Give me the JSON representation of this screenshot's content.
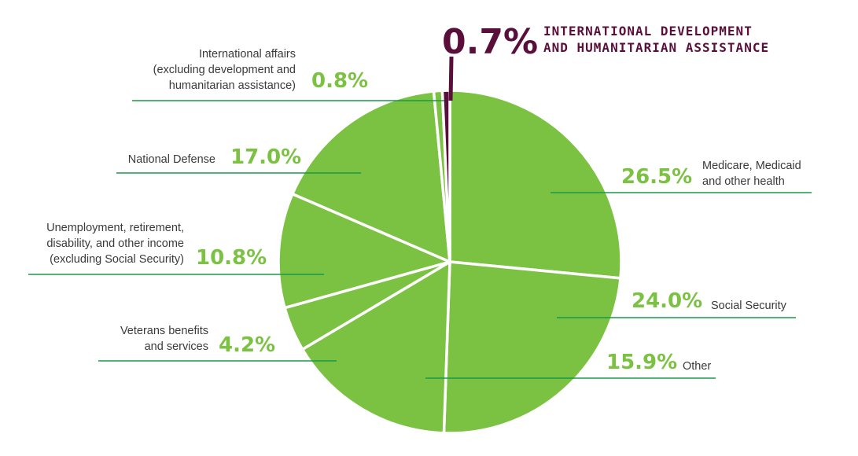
{
  "chart_data": {
    "type": "pie",
    "slices": [
      {
        "label": "Medicare, Medicaid and other health",
        "lines": [
          "Medicare, Medicaid",
          "and other health"
        ],
        "value": 26.5,
        "value_label": "26.5%"
      },
      {
        "label": "Social Security",
        "lines": [
          "Social Security"
        ],
        "value": 24.0,
        "value_label": "24.0%"
      },
      {
        "label": "Other",
        "lines": [
          "Other"
        ],
        "value": 15.9,
        "value_label": "15.9%"
      },
      {
        "label": "Veterans benefits and services",
        "lines": [
          "Veterans benefits",
          "and services"
        ],
        "value": 4.2,
        "value_label": "4.2%"
      },
      {
        "label": "Unemployment, retirement, disability, and other income (excluding Social Security)",
        "lines": [
          "Unemployment, retirement,",
          "disability, and other income",
          "(excluding Social Security)"
        ],
        "value": 10.8,
        "value_label": "10.8%"
      },
      {
        "label": "National Defense",
        "lines": [
          "National Defense"
        ],
        "value": 17.0,
        "value_label": "17.0%"
      },
      {
        "label": "International affairs (excluding development and humanitarian assistance)",
        "lines": [
          "International affairs",
          "(excluding development and",
          "humanitarian assistance)"
        ],
        "value": 0.8,
        "value_label": "0.8%"
      },
      {
        "label": "International development and humanitarian assistance",
        "lines": [
          "INTERNATIONAL DEVELOPMENT",
          "AND HUMANITARIAN ASSISTANCE"
        ],
        "value": 0.7,
        "value_label": "0.7%",
        "highlight": true
      }
    ],
    "start_angle_deg": 0,
    "direction": "clockwise"
  },
  "colors": {
    "slice": "#7cc242",
    "highlight_slice": "#5a0f3a",
    "highlight_text": "#5a0f3a",
    "percent_text": "#7cc242",
    "leader_line": "#1a9a4a",
    "label_text": "#3a3a3a"
  }
}
